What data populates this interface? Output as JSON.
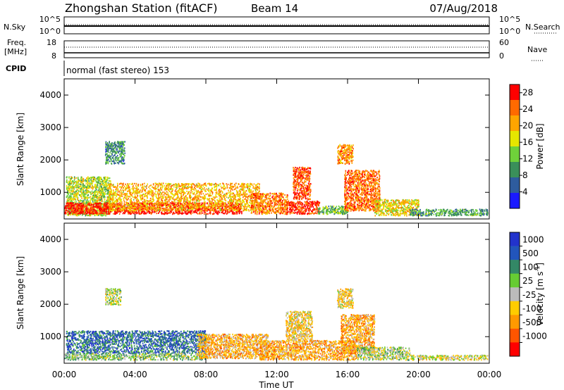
{
  "header": {
    "station": "Zhongshan Station (fitACF)",
    "beam": "Beam 14",
    "date": "07/Aug/2018"
  },
  "noise_panel": {
    "left_label": "N.Sky",
    "left_ticks": [
      "10^5",
      "10^0"
    ],
    "right_label": "N.Search",
    "right_ticks": [
      "10^5",
      "10^0"
    ]
  },
  "freq_panel": {
    "left_label_1": "Freq.",
    "left_label_2": "[MHz]",
    "left_ticks": [
      "18",
      "8"
    ],
    "right_label": "Nave",
    "right_ticks": [
      "60",
      "0"
    ]
  },
  "cpid": {
    "label": "CPID",
    "value": "normal (fast stereo) 153"
  },
  "x_axis": {
    "label": "Time UT",
    "ticks": [
      "00:00",
      "04:00",
      "08:00",
      "12:00",
      "16:00",
      "20:00",
      "00:00"
    ]
  },
  "colors": {
    "power_scale": [
      "#1a1aff",
      "#2e5c9e",
      "#3a8f5a",
      "#6fd13a",
      "#e6e600",
      "#ffa500",
      "#ff6a00",
      "#ff0000"
    ],
    "velocity_scale": [
      "#ff0000",
      "#ff5500",
      "#ff9900",
      "#ffcc00",
      "#bbbbbb",
      "#66cc33",
      "#338866",
      "#2255bb",
      "#2233cc"
    ]
  },
  "chart_data": [
    {
      "type": "heatmap",
      "title": "Power",
      "xlabel": "Time UT",
      "ylabel": "Slant Range [km]",
      "xlim": [
        0,
        24
      ],
      "ylim": [
        180,
        4500
      ],
      "yticks": [
        "1000",
        "2000",
        "3000",
        "4000"
      ],
      "colorbar": {
        "label": "Power [dB]",
        "ticks": [
          "4",
          "8",
          "12",
          "16",
          "20",
          "24",
          "28"
        ],
        "range": [
          0,
          30
        ]
      },
      "regions": [
        {
          "t0": 0.1,
          "t1": 2.6,
          "r0": 300,
          "r1": 1500,
          "value": 15
        },
        {
          "t0": 0.0,
          "t1": 10.0,
          "r0": 350,
          "r1": 700,
          "value": 28
        },
        {
          "t0": 2.5,
          "t1": 11.0,
          "r0": 450,
          "r1": 1300,
          "value": 20
        },
        {
          "t0": 10.5,
          "t1": 12.6,
          "r0": 350,
          "r1": 1000,
          "value": 23
        },
        {
          "t0": 12.5,
          "t1": 14.4,
          "r0": 350,
          "r1": 750,
          "value": 27
        },
        {
          "t0": 12.9,
          "t1": 13.9,
          "r0": 800,
          "r1": 1800,
          "value": 26
        },
        {
          "t0": 14.3,
          "t1": 16.0,
          "r0": 350,
          "r1": 600,
          "value": 12
        },
        {
          "t0": 15.8,
          "t1": 17.8,
          "r0": 450,
          "r1": 1700,
          "value": 24
        },
        {
          "t0": 17.5,
          "t1": 20.0,
          "r0": 300,
          "r1": 800,
          "value": 18
        },
        {
          "t0": 19.5,
          "t1": 23.9,
          "r0": 300,
          "r1": 500,
          "value": 10
        },
        {
          "t0": 2.3,
          "t1": 3.4,
          "r0": 1900,
          "r1": 2600,
          "value": 9
        },
        {
          "t0": 15.4,
          "t1": 16.3,
          "r0": 1900,
          "r1": 2500,
          "value": 22
        }
      ]
    },
    {
      "type": "heatmap",
      "title": "Velocity",
      "xlabel": "Time UT",
      "ylabel": "Slant Range [km]",
      "xlim": [
        0,
        24
      ],
      "ylim": [
        180,
        4500
      ],
      "yticks": [
        "1000",
        "2000",
        "3000",
        "4000"
      ],
      "colorbar": {
        "label": "Velocity [m s-1]",
        "label_main": "Velocity [m s",
        "label_exp": "-1",
        "label_close": "]",
        "ticks": [
          "1000",
          "500",
          "100",
          "25",
          "-25",
          "-100",
          "-500",
          "-1000"
        ],
        "range": [
          -1000,
          1000
        ]
      },
      "regions": [
        {
          "t0": 0.1,
          "t1": 8.0,
          "r0": 500,
          "r1": 1200,
          "value": 600
        },
        {
          "t0": 0.0,
          "t1": 8.0,
          "r0": 300,
          "r1": 500,
          "value": 150
        },
        {
          "t0": 7.5,
          "t1": 11.5,
          "r0": 350,
          "r1": 1100,
          "value": -300
        },
        {
          "t0": 11.0,
          "t1": 16.5,
          "r0": 300,
          "r1": 900,
          "value": -350
        },
        {
          "t0": 12.5,
          "t1": 14.0,
          "r0": 900,
          "r1": 1800,
          "value": -200
        },
        {
          "t0": 15.6,
          "t1": 17.5,
          "r0": 500,
          "r1": 1700,
          "value": -350
        },
        {
          "t0": 16.5,
          "t1": 19.5,
          "r0": 300,
          "r1": 700,
          "value": 80
        },
        {
          "t0": 19.5,
          "t1": 23.9,
          "r0": 300,
          "r1": 450,
          "value": -50
        },
        {
          "t0": 2.3,
          "t1": 3.2,
          "r0": 2000,
          "r1": 2500,
          "value": 20
        },
        {
          "t0": 15.4,
          "t1": 16.3,
          "r0": 1900,
          "r1": 2500,
          "value": -150
        }
      ]
    }
  ]
}
